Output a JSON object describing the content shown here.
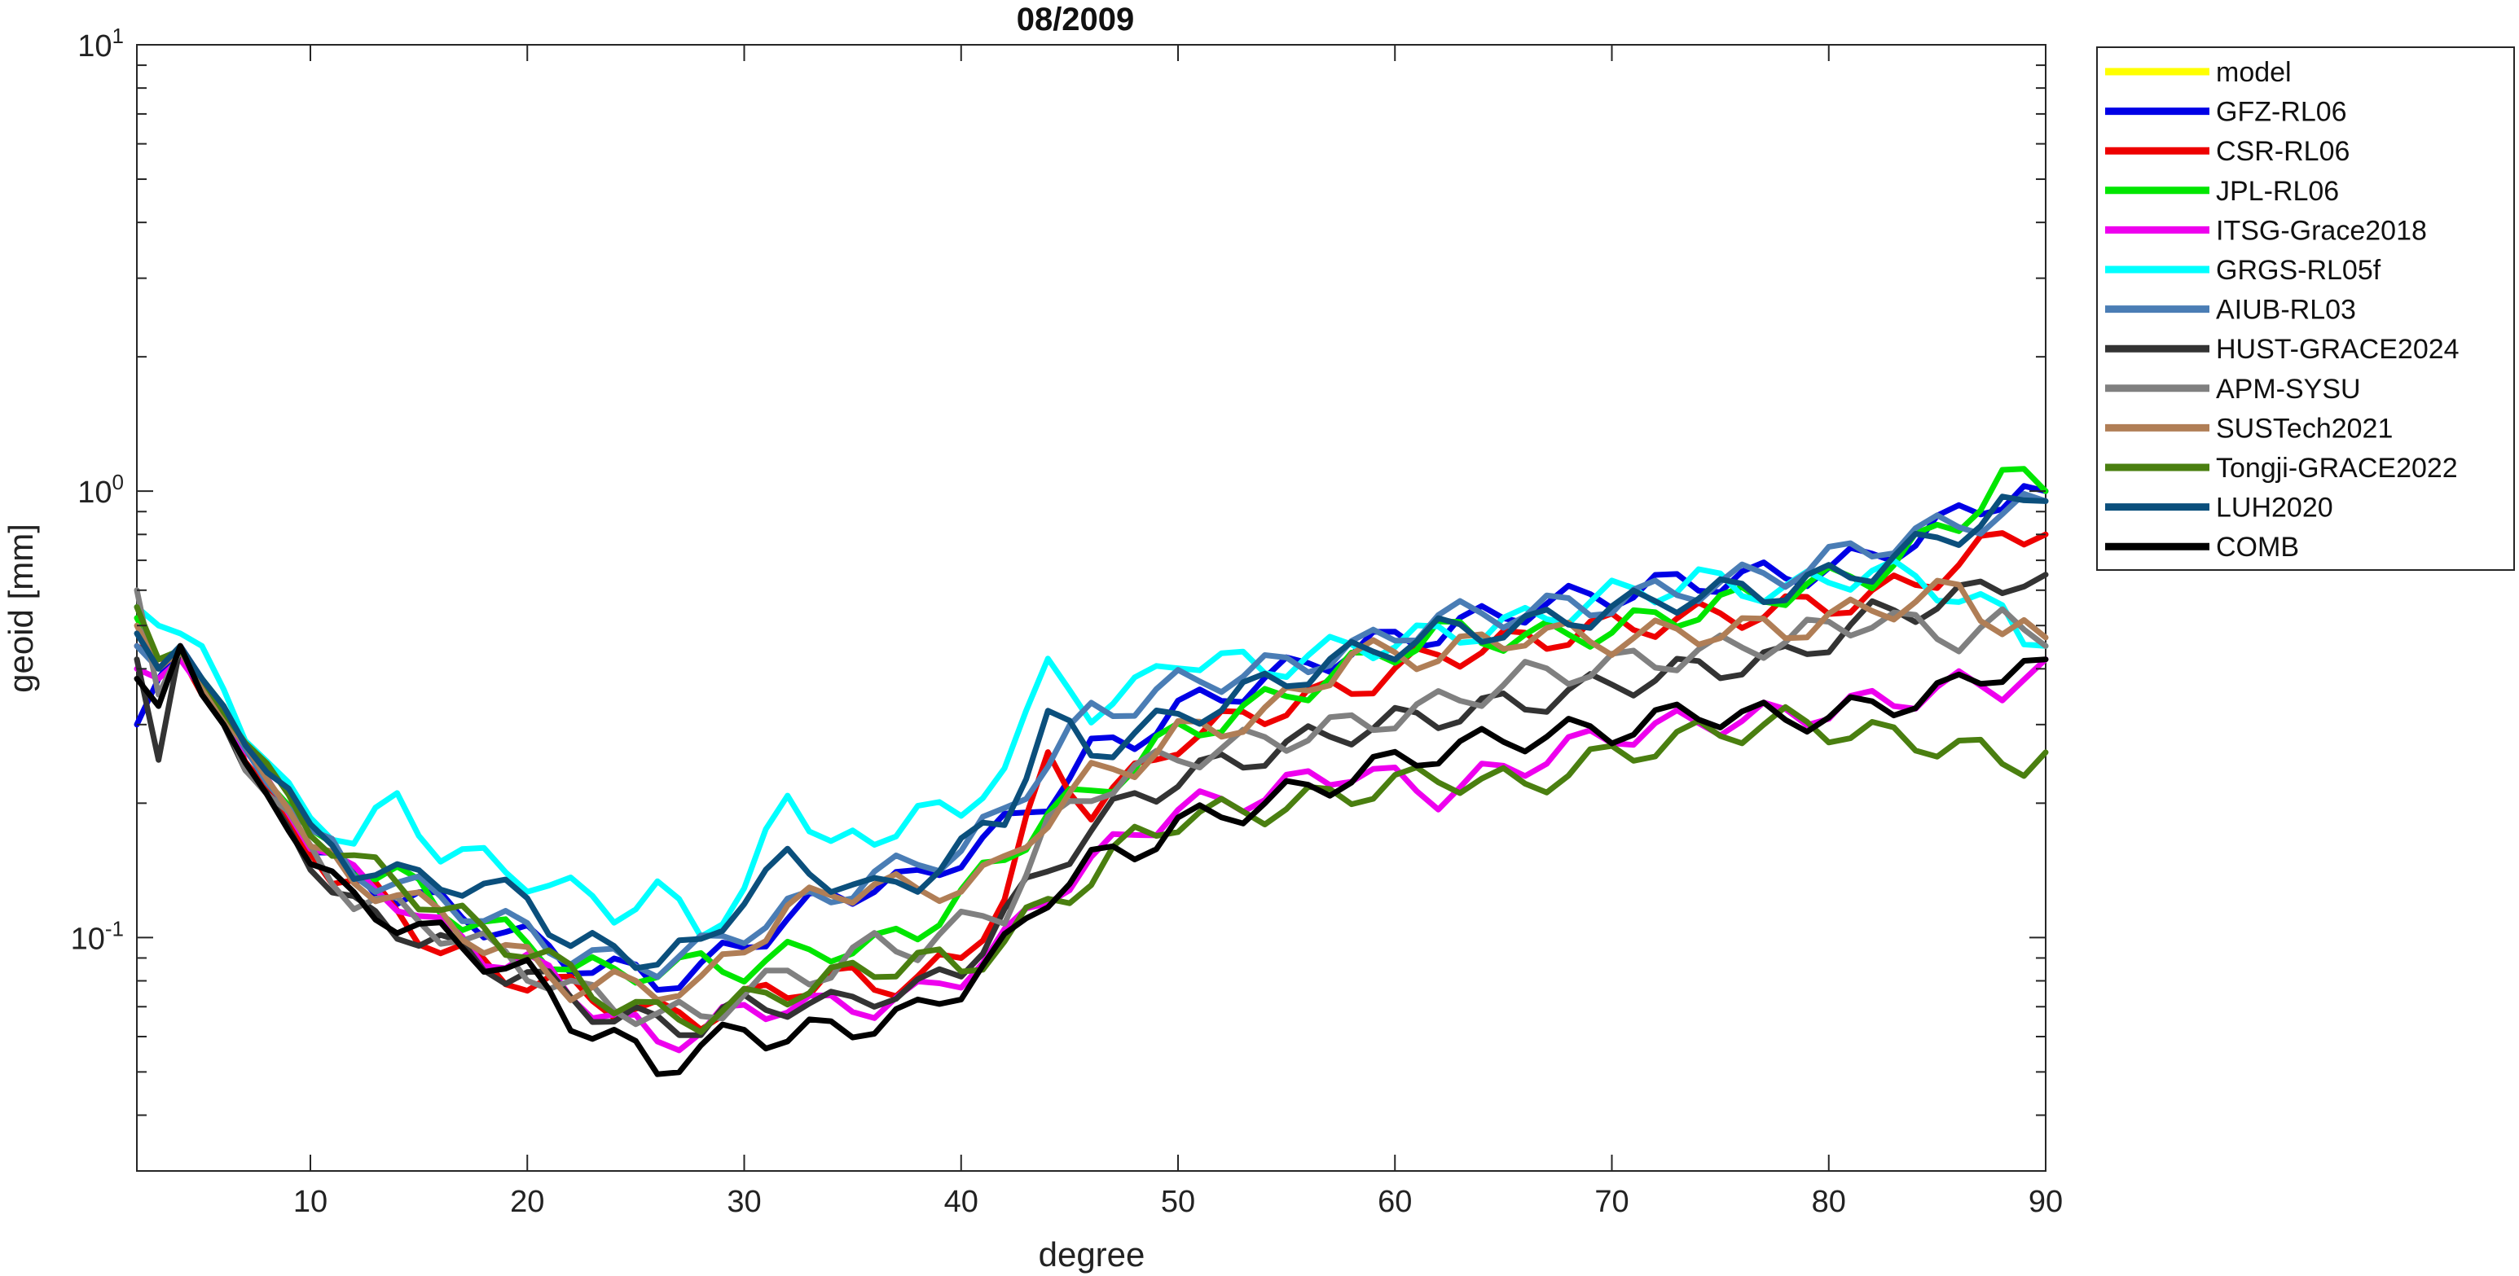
{
  "chart_data": {
    "type": "line",
    "title": "08/2009",
    "xlabel": "degree",
    "ylabel": "geoid [mm]",
    "xlim": [
      2,
      90
    ],
    "ylim": [
      0.03,
      10
    ],
    "yscale": "log",
    "grid": false,
    "legend_position": "outside-right",
    "x_ticks": [
      10,
      20,
      30,
      40,
      50,
      60,
      70,
      80,
      90
    ],
    "x_tick_labels": [
      "10",
      "20",
      "30",
      "40",
      "50",
      "60",
      "70",
      "80",
      "90"
    ],
    "y_ticks": [
      {
        "value": 10,
        "base": "10",
        "exponent": "1"
      },
      {
        "value": 1,
        "base": "10",
        "exponent": "0"
      },
      {
        "value": 0.1,
        "base": "10",
        "exponent": "-1"
      }
    ],
    "x_nodes": [
      2,
      3,
      4,
      5,
      6,
      7,
      9,
      10,
      12,
      14,
      16,
      18,
      20,
      22,
      24,
      26,
      28,
      30,
      32,
      34,
      36,
      38,
      40,
      42,
      44,
      46,
      48,
      50,
      54,
      58,
      62,
      66,
      70,
      74,
      78,
      82,
      86,
      88,
      90
    ],
    "series": [
      {
        "name": "model",
        "color": "#ffff00",
        "values": []
      },
      {
        "name": "GFZ-RL06",
        "color": "#0000e6",
        "values": [
          0.3,
          0.38,
          0.45,
          0.38,
          0.32,
          0.26,
          0.2,
          0.16,
          0.14,
          0.13,
          0.12,
          0.11,
          0.1,
          0.09,
          0.085,
          0.08,
          0.085,
          0.095,
          0.11,
          0.12,
          0.13,
          0.13,
          0.15,
          0.17,
          0.2,
          0.25,
          0.27,
          0.31,
          0.36,
          0.42,
          0.46,
          0.52,
          0.56,
          0.6,
          0.62,
          0.68,
          0.85,
          0.95,
          1.0
        ]
      },
      {
        "name": "CSR-RL06",
        "color": "#ee0000",
        "values": [
          0.45,
          0.42,
          0.43,
          0.35,
          0.32,
          0.26,
          0.18,
          0.16,
          0.14,
          0.12,
          0.1,
          0.09,
          0.085,
          0.08,
          0.075,
          0.07,
          0.07,
          0.075,
          0.08,
          0.085,
          0.08,
          0.085,
          0.09,
          0.13,
          0.25,
          0.2,
          0.23,
          0.28,
          0.32,
          0.36,
          0.42,
          0.45,
          0.48,
          0.5,
          0.52,
          0.55,
          0.65,
          0.75,
          0.8
        ]
      },
      {
        "name": "JPL-RL06",
        "color": "#00e600",
        "values": [
          0.52,
          0.42,
          0.44,
          0.38,
          0.33,
          0.27,
          0.2,
          0.17,
          0.15,
          0.14,
          0.12,
          0.11,
          0.1,
          0.09,
          0.085,
          0.09,
          0.09,
          0.09,
          0.095,
          0.1,
          0.1,
          0.11,
          0.13,
          0.16,
          0.2,
          0.22,
          0.26,
          0.3,
          0.35,
          0.42,
          0.5,
          0.48,
          0.5,
          0.55,
          0.6,
          0.65,
          0.85,
          1.05,
          1.0
        ]
      },
      {
        "name": "ITSG-Grace2018",
        "color": "#ee00ee",
        "values": [
          0.4,
          0.38,
          0.42,
          0.36,
          0.31,
          0.25,
          0.19,
          0.16,
          0.13,
          0.12,
          0.1,
          0.09,
          0.085,
          0.075,
          0.065,
          0.058,
          0.062,
          0.068,
          0.072,
          0.07,
          0.072,
          0.075,
          0.085,
          0.1,
          0.13,
          0.15,
          0.18,
          0.2,
          0.22,
          0.25,
          0.22,
          0.26,
          0.3,
          0.32,
          0.33,
          0.35,
          0.38,
          0.38,
          0.42
        ]
      },
      {
        "name": "GRGS-RL05f",
        "color": "#00ffff",
        "values": [
          0.55,
          0.5,
          0.48,
          0.45,
          0.36,
          0.28,
          0.21,
          0.18,
          0.16,
          0.19,
          0.15,
          0.14,
          0.13,
          0.12,
          0.11,
          0.12,
          0.1,
          0.12,
          0.2,
          0.16,
          0.15,
          0.2,
          0.17,
          0.25,
          0.38,
          0.32,
          0.35,
          0.42,
          0.4,
          0.45,
          0.48,
          0.52,
          0.6,
          0.65,
          0.62,
          0.7,
          0.62,
          0.55,
          0.45
        ]
      },
      {
        "name": "AIUB-RL03",
        "color": "#4a7db5",
        "values": [
          0.45,
          0.4,
          0.44,
          0.37,
          0.32,
          0.26,
          0.2,
          0.17,
          0.14,
          0.13,
          0.12,
          0.11,
          0.1,
          0.09,
          0.085,
          0.085,
          0.09,
          0.1,
          0.11,
          0.12,
          0.13,
          0.14,
          0.15,
          0.18,
          0.24,
          0.3,
          0.32,
          0.35,
          0.38,
          0.42,
          0.5,
          0.52,
          0.55,
          0.6,
          0.65,
          0.75,
          0.85,
          0.9,
          0.95
        ]
      },
      {
        "name": "HUST-GRACE2024",
        "color": "#333333",
        "values": [
          0.42,
          0.25,
          0.45,
          0.35,
          0.3,
          0.24,
          0.18,
          0.15,
          0.12,
          0.11,
          0.1,
          0.09,
          0.085,
          0.075,
          0.068,
          0.065,
          0.065,
          0.07,
          0.072,
          0.07,
          0.075,
          0.075,
          0.085,
          0.11,
          0.14,
          0.17,
          0.2,
          0.22,
          0.25,
          0.28,
          0.3,
          0.32,
          0.35,
          0.38,
          0.4,
          0.5,
          0.55,
          0.6,
          0.65
        ]
      },
      {
        "name": "APM-SYSU",
        "color": "#808080",
        "values": [
          0.6,
          0.35,
          0.44,
          0.36,
          0.31,
          0.25,
          0.19,
          0.16,
          0.13,
          0.12,
          0.11,
          0.1,
          0.09,
          0.08,
          0.075,
          0.07,
          0.07,
          0.08,
          0.085,
          0.09,
          0.1,
          0.1,
          0.11,
          0.12,
          0.18,
          0.22,
          0.24,
          0.26,
          0.28,
          0.3,
          0.33,
          0.38,
          0.4,
          0.42,
          0.45,
          0.5,
          0.45,
          0.48,
          0.45
        ]
      },
      {
        "name": "SUSTech2021",
        "color": "#b07e56",
        "values": [
          0.5,
          0.4,
          0.44,
          0.36,
          0.31,
          0.26,
          0.2,
          0.16,
          0.13,
          0.13,
          0.11,
          0.1,
          0.09,
          0.08,
          0.08,
          0.08,
          0.08,
          0.1,
          0.12,
          0.13,
          0.14,
          0.13,
          0.14,
          0.15,
          0.2,
          0.24,
          0.26,
          0.3,
          0.33,
          0.45,
          0.45,
          0.5,
          0.48,
          0.5,
          0.5,
          0.55,
          0.6,
          0.5,
          0.47
        ]
      },
      {
        "name": "Tongji-GRACE2022",
        "color": "#4a7f10",
        "values": [
          0.55,
          0.42,
          0.44,
          0.38,
          0.32,
          0.27,
          0.2,
          0.17,
          0.14,
          0.13,
          0.11,
          0.1,
          0.09,
          0.08,
          0.07,
          0.065,
          0.065,
          0.07,
          0.075,
          0.08,
          0.085,
          0.09,
          0.085,
          0.1,
          0.12,
          0.14,
          0.17,
          0.19,
          0.2,
          0.22,
          0.24,
          0.23,
          0.27,
          0.3,
          0.32,
          0.3,
          0.28,
          0.26,
          0.26
        ]
      },
      {
        "name": "LUH2020",
        "color": "#0b4f7c",
        "values": [
          0.48,
          0.4,
          0.45,
          0.38,
          0.33,
          0.27,
          0.21,
          0.17,
          0.14,
          0.13,
          0.13,
          0.12,
          0.12,
          0.09,
          0.09,
          0.085,
          0.09,
          0.12,
          0.14,
          0.13,
          0.12,
          0.13,
          0.15,
          0.18,
          0.3,
          0.25,
          0.28,
          0.3,
          0.36,
          0.42,
          0.48,
          0.5,
          0.55,
          0.6,
          0.62,
          0.7,
          0.85,
          0.95,
          0.95
        ]
      },
      {
        "name": "COMB",
        "color": "#000000",
        "values": [
          0.38,
          0.33,
          0.45,
          0.35,
          0.3,
          0.24,
          0.18,
          0.15,
          0.12,
          0.11,
          0.1,
          0.09,
          0.082,
          0.065,
          0.058,
          0.05,
          0.055,
          0.06,
          0.058,
          0.06,
          0.062,
          0.065,
          0.075,
          0.09,
          0.12,
          0.14,
          0.15,
          0.17,
          0.19,
          0.22,
          0.25,
          0.27,
          0.28,
          0.31,
          0.3,
          0.32,
          0.36,
          0.4,
          0.42
        ]
      }
    ]
  }
}
